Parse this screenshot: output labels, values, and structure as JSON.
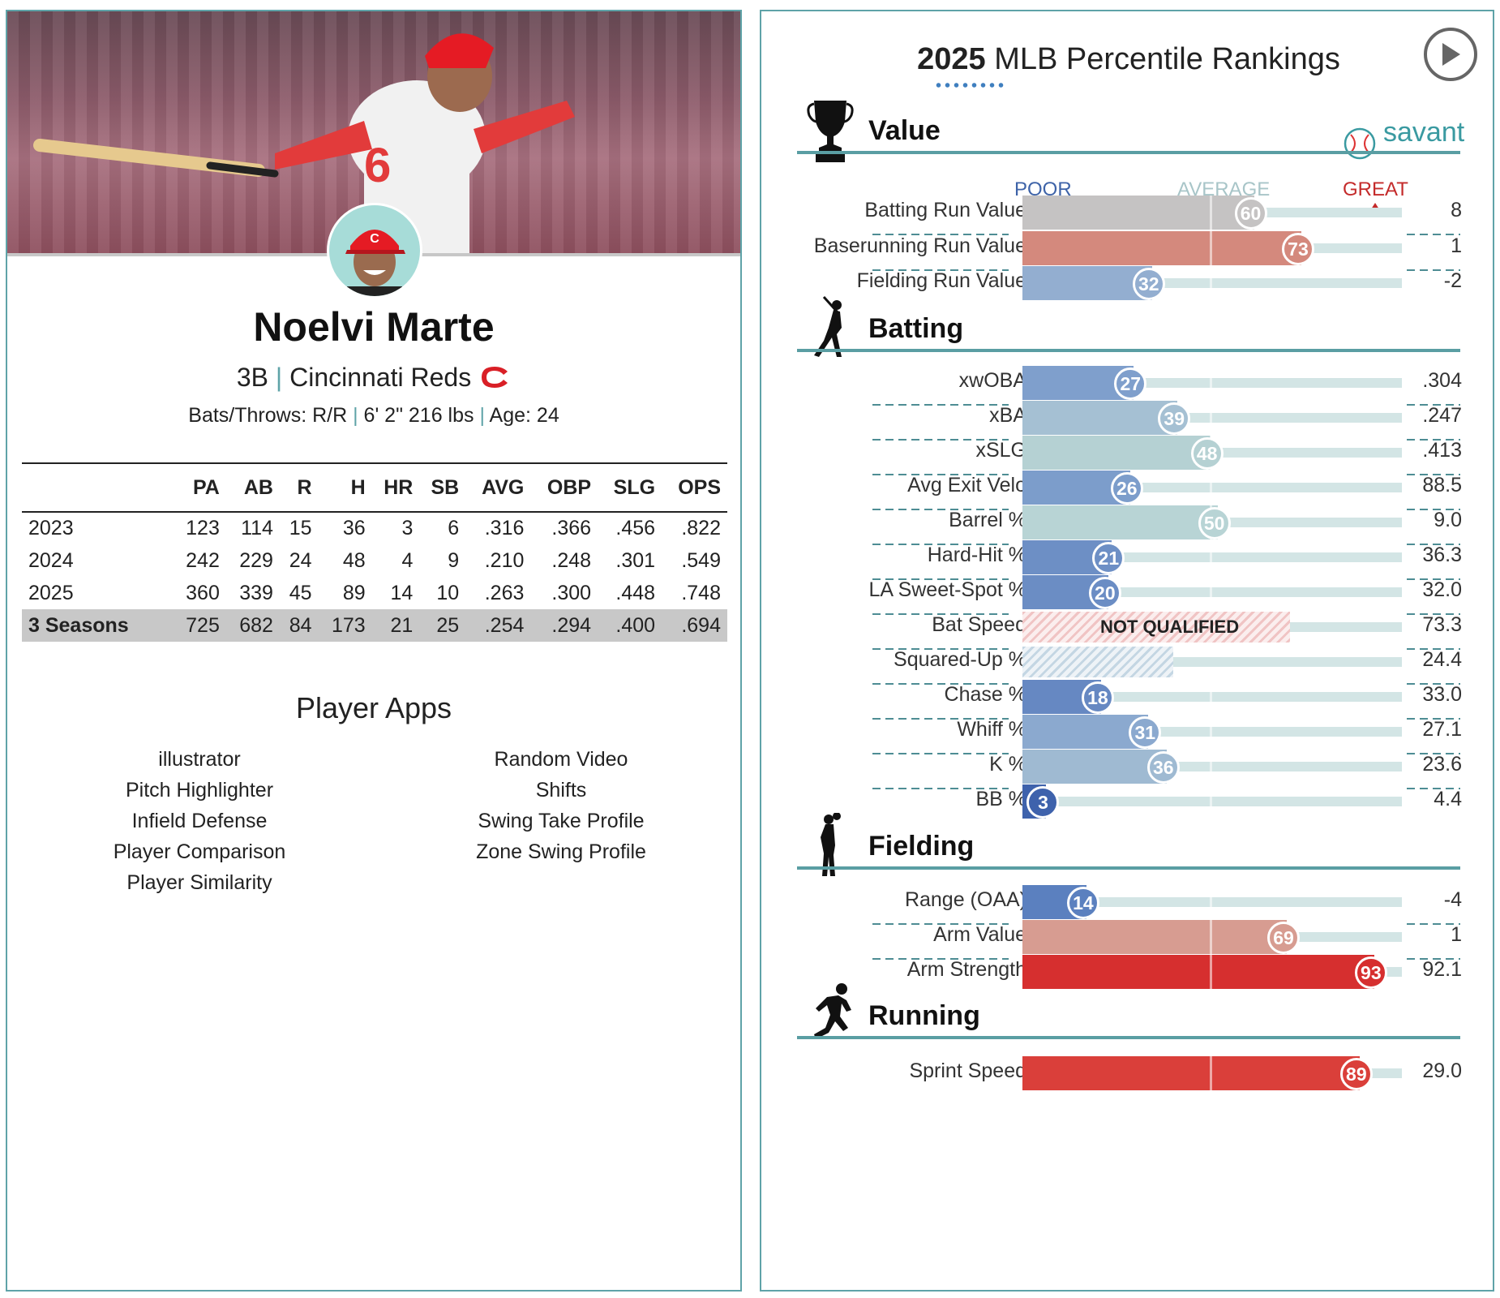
{
  "player": {
    "name": "Noelvi Marte",
    "position": "3B",
    "team": "Cincinnati Reds",
    "bio_bats": "Bats/Throws: R/R",
    "bio_size": "6' 2\" 216 lbs",
    "bio_age": "Age: 24",
    "separator": "|"
  },
  "stats": {
    "headers": [
      "",
      "PA",
      "AB",
      "R",
      "H",
      "HR",
      "SB",
      "AVG",
      "OBP",
      "SLG",
      "OPS"
    ],
    "rows": [
      [
        "2023",
        "123",
        "114",
        "15",
        "36",
        "3",
        "6",
        ".316",
        ".366",
        ".456",
        ".822"
      ],
      [
        "2024",
        "242",
        "229",
        "24",
        "48",
        "4",
        "9",
        ".210",
        ".248",
        ".301",
        ".549"
      ],
      [
        "2025",
        "360",
        "339",
        "45",
        "89",
        "14",
        "10",
        ".263",
        ".300",
        ".448",
        ".748"
      ],
      [
        "3 Seasons",
        "725",
        "682",
        "84",
        "173",
        "21",
        "25",
        ".254",
        ".294",
        ".400",
        ".694"
      ]
    ]
  },
  "apps": {
    "title": "Player Apps",
    "col1": [
      "illustrator",
      "Pitch Highlighter",
      "Infield Defense",
      "Player Comparison",
      "Player Similarity"
    ],
    "col2": [
      "Random Video",
      "Shifts",
      "Swing Take Profile",
      "Zone Swing Profile"
    ]
  },
  "rankings": {
    "title_year": "2025",
    "title_rest": " MLB Percentile Rankings",
    "brand": "savant",
    "legend": {
      "poor": "POOR",
      "average": "AVERAGE",
      "great": "GREAT"
    },
    "not_qualified": "NOT QUALIFIED",
    "sections": [
      {
        "title": "Value",
        "icon": "trophy-icon",
        "metrics": [
          {
            "label": "Batting Run Value",
            "pct": 60,
            "value": "8",
            "color": "#c5c3c3"
          },
          {
            "label": "Baserunning Run Value",
            "pct": 73,
            "value": "1",
            "color": "#d4897d"
          },
          {
            "label": "Fielding Run Value",
            "pct": 32,
            "value": "-2",
            "color": "#93aed0"
          }
        ]
      },
      {
        "title": "Batting",
        "icon": "batter-icon",
        "metrics": [
          {
            "label": "xwOBA",
            "pct": 27,
            "value": ".304",
            "color": "#7f9fcc"
          },
          {
            "label": "xBA",
            "pct": 39,
            "value": ".247",
            "color": "#a5c0d3"
          },
          {
            "label": "xSLG",
            "pct": 48,
            "value": ".413",
            "color": "#b5d1d3"
          },
          {
            "label": "Avg Exit Velo",
            "pct": 26,
            "value": "88.5",
            "color": "#7c9dcb"
          },
          {
            "label": "Barrel %",
            "pct": 50,
            "value": "9.0",
            "color": "#b8d4d5"
          },
          {
            "label": "Hard-Hit %",
            "pct": 21,
            "value": "36.3",
            "color": "#6d8fc5"
          },
          {
            "label": "LA Sweet-Spot %",
            "pct": 20,
            "value": "32.0",
            "color": "#6b8dc4"
          },
          {
            "label": "Bat Speed",
            "pct": null,
            "value": "73.3",
            "nq": "red"
          },
          {
            "label": "Squared-Up %",
            "pct": null,
            "value": "24.4",
            "nq": "blue"
          },
          {
            "label": "Chase %",
            "pct": 18,
            "value": "33.0",
            "color": "#6688c2"
          },
          {
            "label": "Whiff %",
            "pct": 31,
            "value": "27.1",
            "color": "#8ba9cf"
          },
          {
            "label": "K %",
            "pct": 36,
            "value": "23.6",
            "color": "#9fbad2"
          },
          {
            "label": "BB %",
            "pct": 3,
            "value": "4.4",
            "color": "#3e62ac"
          }
        ]
      },
      {
        "title": "Fielding",
        "icon": "fielder-icon",
        "metrics": [
          {
            "label": "Range (OAA)",
            "pct": 14,
            "value": "-4",
            "color": "#5b80bf"
          },
          {
            "label": "Arm Value",
            "pct": 69,
            "value": "1",
            "color": "#d79c91"
          },
          {
            "label": "Arm Strength",
            "pct": 93,
            "value": "92.1",
            "color": "#d62f2f"
          }
        ]
      },
      {
        "title": "Running",
        "icon": "runner-icon",
        "metrics": [
          {
            "label": "Sprint Speed",
            "pct": 89,
            "value": "29.0",
            "color": "#da3f3a"
          }
        ]
      }
    ]
  }
}
